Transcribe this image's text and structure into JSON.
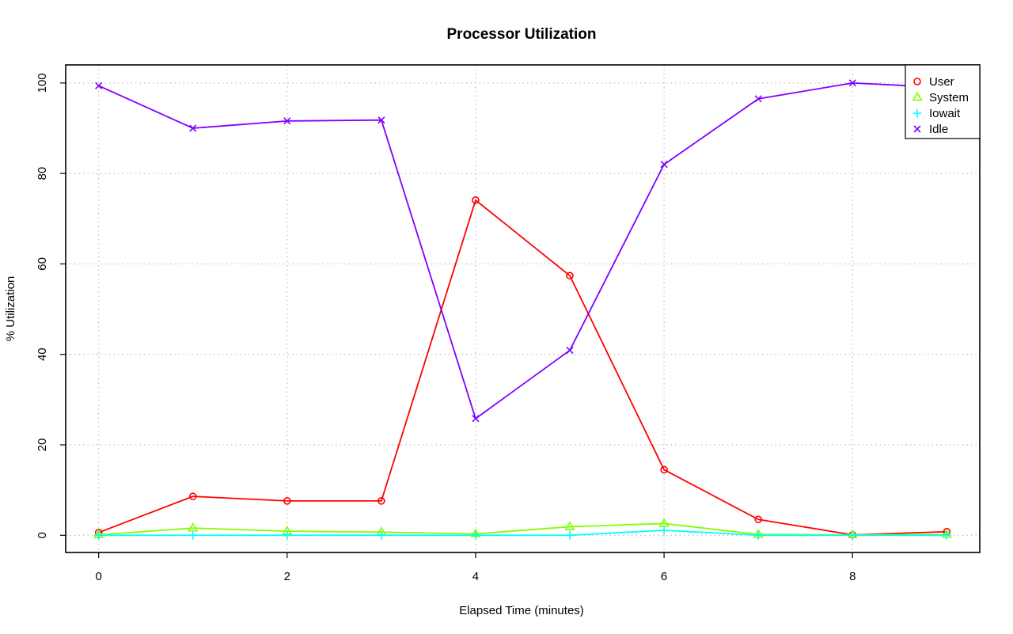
{
  "chart_data": {
    "type": "line",
    "title": "Processor Utilization",
    "xlabel": "Elapsed Time (minutes)",
    "ylabel": "% Utilization",
    "xlim": [
      -0.35,
      9.35
    ],
    "ylim": [
      -3.8,
      104
    ],
    "xticks": [
      0,
      2,
      4,
      6,
      8
    ],
    "yticks": [
      0,
      20,
      40,
      60,
      80,
      100
    ],
    "grid": true,
    "legend_position": "top-right",
    "x": [
      0,
      1,
      2,
      3,
      4,
      5,
      6,
      7,
      8,
      9
    ],
    "series": [
      {
        "name": "User",
        "color": "#ff0000",
        "marker": "circle",
        "values": [
          0.6,
          8.6,
          7.6,
          7.6,
          74.1,
          57.4,
          14.5,
          3.5,
          0.1,
          0.8
        ]
      },
      {
        "name": "System",
        "color": "#80ff00",
        "marker": "triangle",
        "values": [
          0.1,
          1.6,
          0.9,
          0.7,
          0.3,
          1.9,
          2.6,
          0.2,
          0.1,
          0.2
        ]
      },
      {
        "name": "Iowait",
        "color": "#00ffff",
        "marker": "plus",
        "values": [
          0.0,
          0.0,
          0.0,
          0.0,
          0.0,
          0.0,
          1.1,
          0.0,
          0.0,
          0.0
        ]
      },
      {
        "name": "Idle",
        "color": "#8000ff",
        "marker": "cross",
        "values": [
          99.4,
          90.0,
          91.6,
          91.8,
          25.8,
          40.9,
          82.0,
          96.5,
          100.0,
          99.0
        ]
      }
    ]
  }
}
